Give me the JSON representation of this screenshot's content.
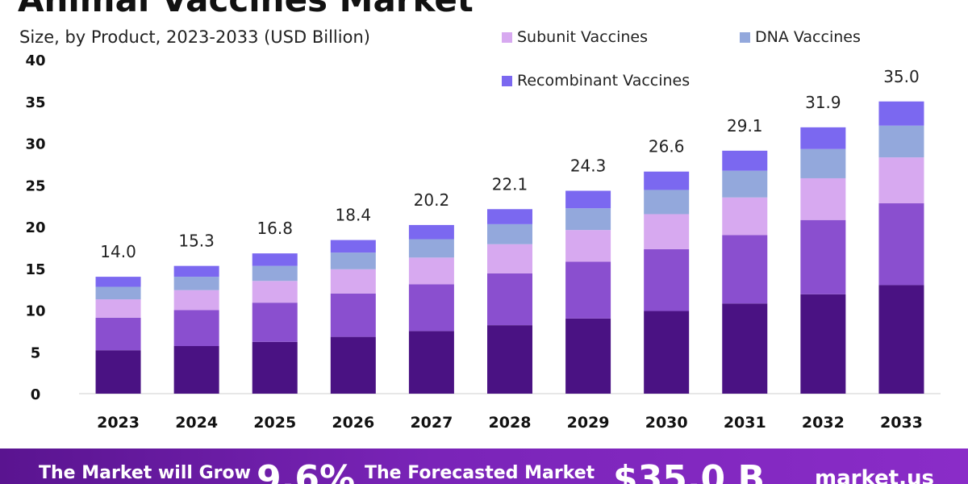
{
  "title": "Animal Vaccines Market",
  "subtitle": "Size, by Product, 2023-2033 (USD Billion)",
  "legend": [
    {
      "label": "Subunit Vaccines",
      "color": "#d7a9f0"
    },
    {
      "label": "DNA Vaccines",
      "color": "#93a8dc"
    },
    {
      "label": "Recombinant Vaccines",
      "color": "#7b68f0"
    }
  ],
  "footer": {
    "grow_text": "The Market will Grow",
    "cagr": "9.6%",
    "forecast_text": "The Forecasted Market",
    "value": "$35.0 B",
    "brand": "market.us"
  },
  "chart_data": {
    "type": "bar",
    "stacked": true,
    "categories": [
      "2023",
      "2024",
      "2025",
      "2026",
      "2027",
      "2028",
      "2029",
      "2030",
      "2031",
      "2032",
      "2033"
    ],
    "totals": [
      "14.0",
      "15.3",
      "16.8",
      "18.4",
      "20.2",
      "22.1",
      "24.3",
      "26.6",
      "29.1",
      "31.9",
      "35.0"
    ],
    "series": [
      {
        "color": "#4a1283",
        "values": [
          5.2,
          5.7,
          6.2,
          6.8,
          7.5,
          8.2,
          9.0,
          9.9,
          10.8,
          11.9,
          13.0
        ]
      },
      {
        "color": "#8a4fcf",
        "values": [
          3.9,
          4.3,
          4.7,
          5.2,
          5.6,
          6.2,
          6.8,
          7.4,
          8.2,
          8.9,
          9.8
        ]
      },
      {
        "name": "Subunit Vaccines",
        "color": "#d7a9f0",
        "values": [
          2.2,
          2.4,
          2.6,
          2.9,
          3.2,
          3.5,
          3.8,
          4.2,
          4.5,
          5.0,
          5.5
        ]
      },
      {
        "name": "DNA Vaccines",
        "color": "#93a8dc",
        "values": [
          1.5,
          1.6,
          1.8,
          2.0,
          2.2,
          2.4,
          2.6,
          2.9,
          3.2,
          3.5,
          3.8
        ]
      },
      {
        "name": "Recombinant Vaccines",
        "color": "#7b68f0",
        "values": [
          1.2,
          1.3,
          1.5,
          1.5,
          1.7,
          1.8,
          2.1,
          2.2,
          2.4,
          2.6,
          2.9
        ]
      }
    ],
    "ylim": [
      0,
      40
    ],
    "yticks": [
      "0",
      "5",
      "10",
      "15",
      "20",
      "25",
      "30",
      "35",
      "40"
    ],
    "grid": false
  }
}
